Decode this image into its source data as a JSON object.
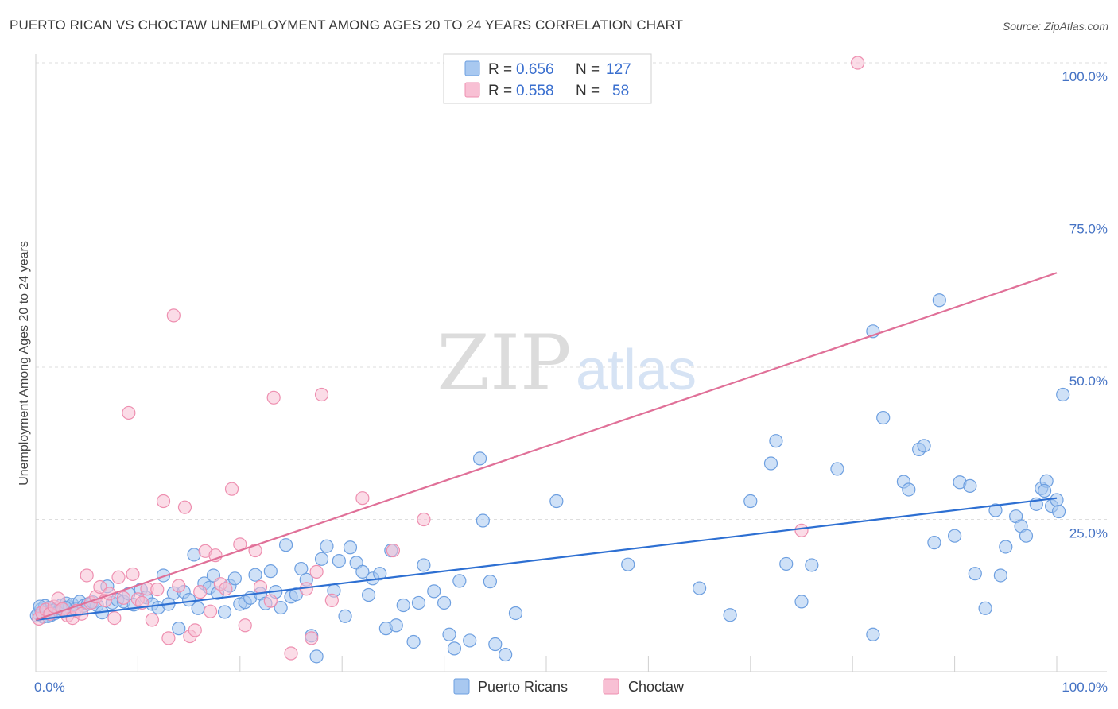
{
  "header": {
    "title": "PUERTO RICAN VS CHOCTAW UNEMPLOYMENT AMONG AGES 20 TO 24 YEARS CORRELATION CHART",
    "source": "Source: ZipAtlas.com"
  },
  "watermark": {
    "zip": "ZIP",
    "atlas": "atlas"
  },
  "legend": {
    "rows": [
      {
        "r_label": "R =",
        "r_value": "0.656",
        "n_label": "N =",
        "n_value": "127",
        "color": "#a8c8f0",
        "stroke": "#6d9fe0"
      },
      {
        "r_label": "R =",
        "r_value": "0.558",
        "n_label": "N =",
        "n_value": "58",
        "color": "#f8c0d4",
        "stroke": "#ee8fb0"
      }
    ]
  },
  "bottom_legend": [
    {
      "label": "Puerto Ricans",
      "color": "#a8c8f0",
      "stroke": "#6d9fe0"
    },
    {
      "label": "Choctaw",
      "color": "#f8c0d4",
      "stroke": "#ee8fb0"
    }
  ],
  "chart_data": {
    "type": "scatter",
    "title": "PUERTO RICAN VS CHOCTAW UNEMPLOYMENT AMONG AGES 20 TO 24 YEARS CORRELATION CHART",
    "xlabel": "",
    "ylabel": "Unemployment Among Ages 20 to 24 years",
    "xlim": [
      0,
      100
    ],
    "ylim": [
      0,
      100
    ],
    "x_tick_labels": [
      "0.0%",
      "100.0%"
    ],
    "y_tick_labels": [
      "25.0%",
      "50.0%",
      "75.0%",
      "100.0%"
    ],
    "y_ticks": [
      25,
      50,
      75,
      100
    ],
    "grid": true,
    "legend_placement": "top-center",
    "series": [
      {
        "name": "Puerto Ricans",
        "color": "#a8c8f0",
        "stroke": "#6d9fe0",
        "trend_color": "#2d6fd2",
        "trend": {
          "x": [
            0,
            100
          ],
          "y": [
            8.5,
            28.5
          ]
        },
        "points": [
          [
            0.3,
            9.5
          ],
          [
            0.5,
            10.2
          ],
          [
            0.7,
            9.0
          ],
          [
            0.9,
            10.8
          ],
          [
            1.1,
            9.8
          ],
          [
            1.3,
            10.5
          ],
          [
            1.5,
            9.3
          ],
          [
            1.7,
            10.0
          ],
          [
            1.9,
            9.6
          ],
          [
            2.1,
            10.4
          ],
          [
            2.3,
            9.9
          ],
          [
            2.5,
            10.9
          ],
          [
            2.7,
            10.1
          ],
          [
            3.0,
            11.2
          ],
          [
            3.3,
            10.6
          ],
          [
            3.6,
            11.0
          ],
          [
            3.9,
            10.3
          ],
          [
            4.3,
            11.5
          ],
          [
            4.7,
            10.8
          ],
          [
            5.1,
            11.1
          ],
          [
            5.6,
            11.4
          ],
          [
            6.0,
            10.9
          ],
          [
            6.5,
            9.7
          ],
          [
            7.0,
            14.0
          ],
          [
            7.5,
            11.3
          ],
          [
            8.0,
            11.8
          ],
          [
            8.6,
            11.5
          ],
          [
            9.1,
            12.8
          ],
          [
            9.6,
            11.0
          ],
          [
            10.3,
            13.5
          ],
          [
            10.8,
            12.2
          ],
          [
            11.4,
            11.1
          ],
          [
            12.0,
            10.5
          ],
          [
            12.5,
            15.8
          ],
          [
            13.0,
            11.1
          ],
          [
            13.5,
            12.9
          ],
          [
            14.0,
            7.1
          ],
          [
            14.5,
            13.1
          ],
          [
            15.0,
            11.8
          ],
          [
            15.5,
            19.2
          ],
          [
            15.9,
            10.4
          ],
          [
            16.5,
            14.5
          ],
          [
            17.0,
            13.8
          ],
          [
            17.4,
            15.8
          ],
          [
            17.8,
            12.9
          ],
          [
            18.5,
            9.8
          ],
          [
            19.0,
            14.1
          ],
          [
            19.5,
            15.3
          ],
          [
            20.0,
            11.1
          ],
          [
            20.5,
            11.4
          ],
          [
            21.0,
            12.1
          ],
          [
            21.5,
            15.9
          ],
          [
            22.0,
            12.8
          ],
          [
            22.5,
            11.2
          ],
          [
            23.0,
            16.5
          ],
          [
            23.5,
            13.1
          ],
          [
            24.0,
            10.5
          ],
          [
            24.5,
            20.8
          ],
          [
            25.0,
            12.3
          ],
          [
            25.5,
            12.7
          ],
          [
            26.0,
            16.9
          ],
          [
            26.5,
            15.1
          ],
          [
            27.0,
            5.9
          ],
          [
            27.5,
            2.5
          ],
          [
            28.0,
            18.5
          ],
          [
            28.5,
            20.6
          ],
          [
            29.2,
            13.3
          ],
          [
            29.7,
            18.2
          ],
          [
            30.3,
            9.1
          ],
          [
            30.8,
            20.4
          ],
          [
            31.4,
            17.9
          ],
          [
            32.0,
            16.4
          ],
          [
            32.6,
            12.6
          ],
          [
            33.0,
            15.3
          ],
          [
            33.7,
            16.1
          ],
          [
            34.3,
            7.1
          ],
          [
            34.8,
            19.9
          ],
          [
            35.3,
            7.6
          ],
          [
            36.0,
            10.9
          ],
          [
            37.0,
            4.9
          ],
          [
            37.5,
            11.3
          ],
          [
            38.0,
            17.5
          ],
          [
            39.0,
            13.2
          ],
          [
            40.0,
            11.3
          ],
          [
            40.5,
            6.1
          ],
          [
            41.0,
            3.8
          ],
          [
            41.5,
            14.9
          ],
          [
            42.5,
            5.1
          ],
          [
            43.5,
            35.0
          ],
          [
            43.8,
            24.8
          ],
          [
            44.5,
            14.8
          ],
          [
            45.0,
            4.5
          ],
          [
            46.0,
            2.8
          ],
          [
            47.0,
            9.6
          ],
          [
            51.0,
            28.0
          ],
          [
            58.0,
            17.6
          ],
          [
            65.0,
            13.7
          ],
          [
            70.0,
            28.0
          ],
          [
            68.0,
            9.3
          ],
          [
            72.0,
            34.2
          ],
          [
            72.5,
            37.9
          ],
          [
            73.5,
            17.7
          ],
          [
            75.0,
            11.5
          ],
          [
            76.0,
            17.5
          ],
          [
            78.5,
            33.3
          ],
          [
            82.0,
            6.1
          ],
          [
            82.0,
            55.9
          ],
          [
            83.0,
            41.7
          ],
          [
            85.0,
            31.2
          ],
          [
            85.5,
            29.9
          ],
          [
            86.5,
            36.5
          ],
          [
            87.0,
            37.1
          ],
          [
            88.0,
            21.2
          ],
          [
            88.5,
            61.0
          ],
          [
            90.0,
            22.3
          ],
          [
            90.5,
            31.1
          ],
          [
            91.5,
            30.5
          ],
          [
            92.0,
            16.1
          ],
          [
            93.0,
            10.4
          ],
          [
            94.0,
            26.5
          ],
          [
            94.5,
            15.8
          ],
          [
            95.0,
            20.5
          ],
          [
            96.0,
            25.5
          ],
          [
            96.5,
            23.9
          ],
          [
            97.0,
            22.3
          ],
          [
            98.0,
            27.5
          ],
          [
            98.5,
            30.1
          ],
          [
            99.0,
            31.3
          ],
          [
            99.5,
            27.2
          ],
          [
            100.0,
            28.2
          ],
          [
            100.2,
            26.3
          ],
          [
            100.6,
            45.5
          ],
          [
            98.8,
            29.7
          ],
          [
            0.1,
            9.2
          ],
          [
            0.4,
            10.7
          ],
          [
            1.2,
            9.1
          ],
          [
            2.9,
            10.5
          ]
        ]
      },
      {
        "name": "Choctaw",
        "color": "#f8c0d4",
        "stroke": "#ee8fb0",
        "trend_color": "#e07098",
        "trend": {
          "x": [
            0,
            100
          ],
          "y": [
            8.5,
            65.5
          ]
        },
        "points": [
          [
            0.3,
            8.7
          ],
          [
            0.6,
            9.7
          ],
          [
            1.0,
            10.2
          ],
          [
            1.4,
            9.5
          ],
          [
            1.8,
            10.7
          ],
          [
            2.2,
            12.0
          ],
          [
            2.6,
            10.3
          ],
          [
            3.1,
            9.2
          ],
          [
            3.6,
            8.8
          ],
          [
            4.0,
            10.0
          ],
          [
            4.5,
            9.5
          ],
          [
            5.0,
            15.8
          ],
          [
            5.4,
            11.3
          ],
          [
            5.9,
            12.3
          ],
          [
            6.3,
            13.9
          ],
          [
            6.8,
            11.7
          ],
          [
            7.2,
            12.8
          ],
          [
            7.7,
            8.8
          ],
          [
            8.1,
            15.5
          ],
          [
            8.6,
            12.1
          ],
          [
            9.1,
            42.5
          ],
          [
            9.5,
            16.0
          ],
          [
            10.0,
            11.9
          ],
          [
            10.4,
            11.3
          ],
          [
            10.9,
            13.6
          ],
          [
            11.4,
            8.5
          ],
          [
            11.9,
            13.5
          ],
          [
            12.5,
            28.0
          ],
          [
            13.0,
            5.5
          ],
          [
            13.5,
            58.5
          ],
          [
            14.0,
            14.1
          ],
          [
            14.6,
            27.0
          ],
          [
            15.1,
            5.8
          ],
          [
            15.6,
            6.8
          ],
          [
            16.1,
            13.1
          ],
          [
            16.6,
            19.8
          ],
          [
            17.1,
            9.9
          ],
          [
            17.6,
            19.1
          ],
          [
            18.1,
            14.4
          ],
          [
            18.6,
            13.6
          ],
          [
            19.2,
            30.0
          ],
          [
            20.0,
            20.9
          ],
          [
            20.5,
            7.6
          ],
          [
            21.5,
            19.9
          ],
          [
            22.0,
            13.9
          ],
          [
            23.0,
            11.6
          ],
          [
            23.3,
            45.0
          ],
          [
            25.0,
            3.0
          ],
          [
            27.0,
            5.5
          ],
          [
            27.5,
            16.4
          ],
          [
            28.0,
            45.5
          ],
          [
            29.0,
            11.7
          ],
          [
            32.0,
            28.5
          ],
          [
            35.0,
            19.9
          ],
          [
            38.0,
            25.0
          ],
          [
            75.0,
            23.2
          ],
          [
            80.5,
            100.0
          ],
          [
            26.5,
            13.6
          ]
        ]
      }
    ]
  }
}
